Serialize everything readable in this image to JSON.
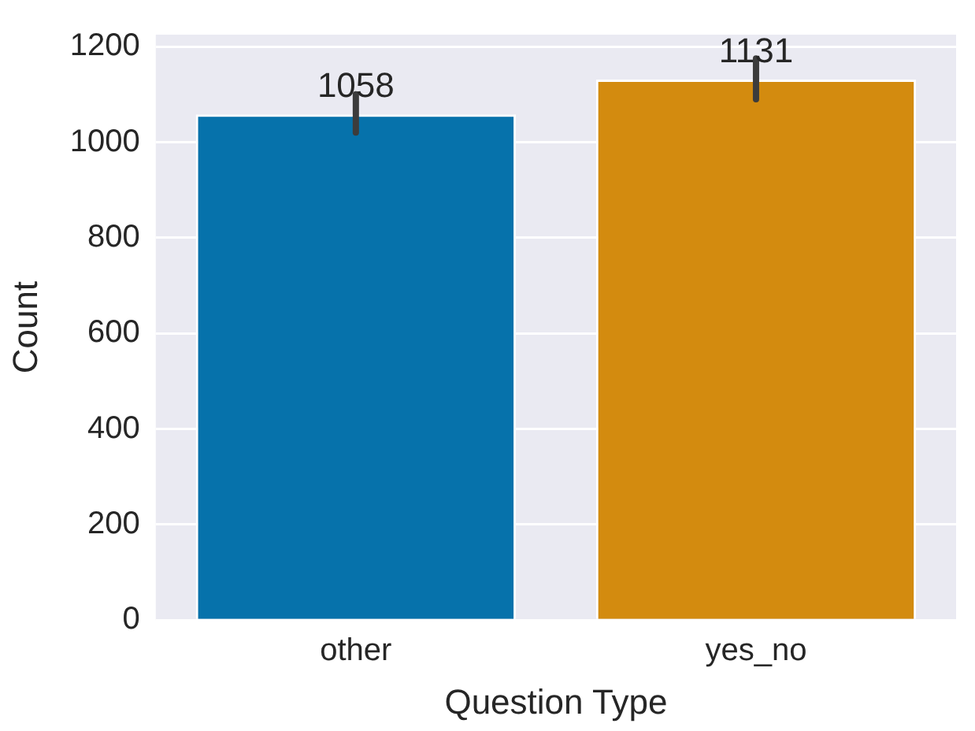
{
  "chart_data": {
    "type": "bar",
    "xlabel": "Question Type",
    "ylabel": "Count",
    "categories": [
      "other",
      "yes_no"
    ],
    "values": [
      1058,
      1131
    ],
    "colors": [
      "#0672ab",
      "#d38b0f"
    ],
    "errors": [
      [
        1020,
        1100
      ],
      [
        1090,
        1175
      ]
    ],
    "data_labels": true,
    "ylim": [
      0,
      1225
    ],
    "yticks": [
      0,
      200,
      400,
      600,
      800,
      1000,
      1200
    ],
    "grid": "y",
    "legend": false
  }
}
